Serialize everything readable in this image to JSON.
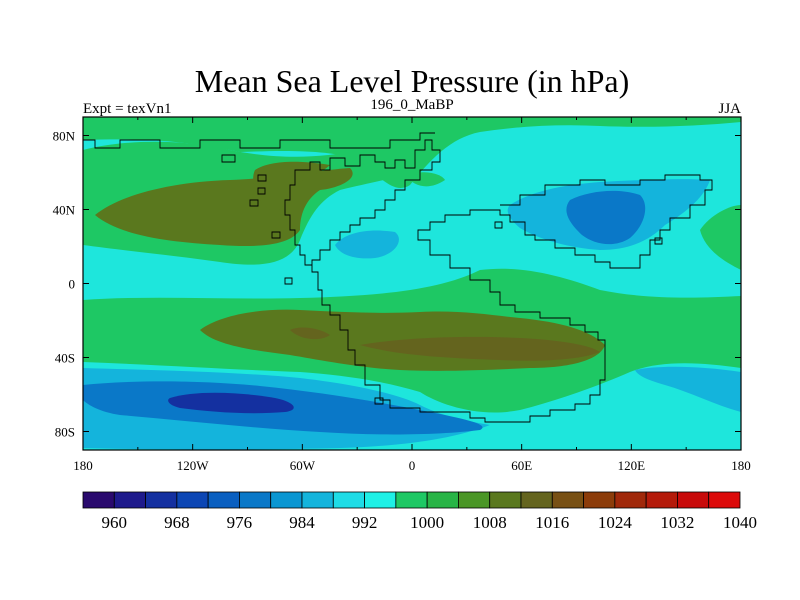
{
  "header": {
    "title": "Mean Sea Level Pressure (in hPa)",
    "left": "Expt = texVn1",
    "center": "196_0_MaBP",
    "right": "JJA"
  },
  "map": {
    "lon_ticks": [
      "180",
      "120W",
      "60W",
      "0",
      "60E",
      "120E",
      "180"
    ],
    "lat_ticks": [
      "80N",
      "40N",
      "0",
      "40S",
      "80S"
    ],
    "lon_range": [
      -180,
      180
    ],
    "lat_range": [
      -90,
      90
    ]
  },
  "colorbar": {
    "labels": [
      "960",
      "968",
      "976",
      "984",
      "992",
      "1000",
      "1008",
      "1016",
      "1024",
      "1032",
      "1040"
    ],
    "colors": [
      "#2a0a6e",
      "#1e1a8c",
      "#1430a0",
      "#0c46b4",
      "#0a5fc0",
      "#0a78c8",
      "#0a96d2",
      "#14b4dc",
      "#1edce6",
      "#1ef0e6",
      "#1ec864",
      "#28b446",
      "#4a9626",
      "#5a781e",
      "#64641e",
      "#785014",
      "#8c3c0a",
      "#a0280a",
      "#b41a0a",
      "#c80a0a",
      "#dc0a0a"
    ]
  }
}
